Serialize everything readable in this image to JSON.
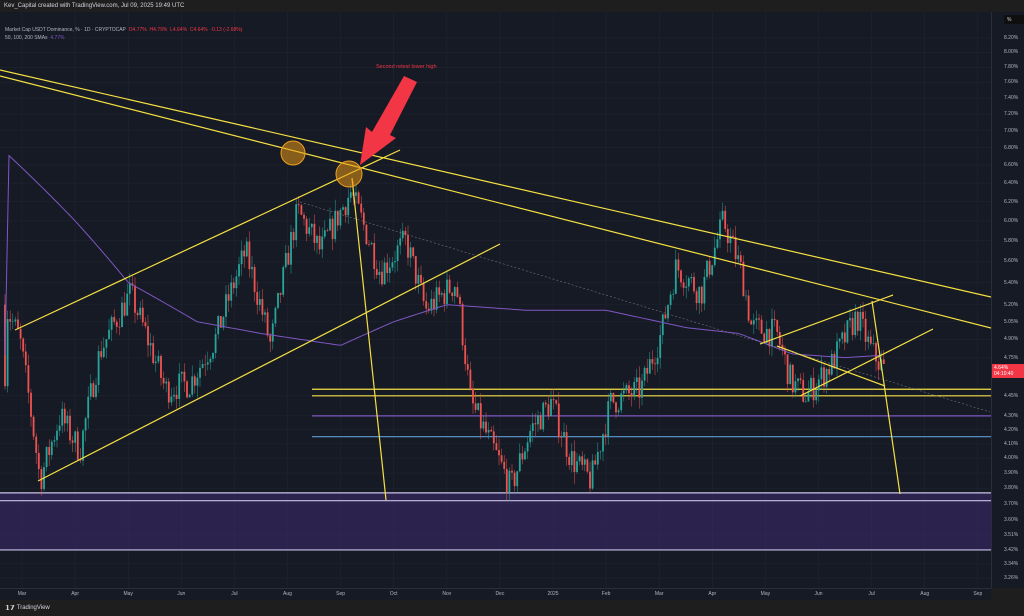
{
  "header": {
    "title": "Kev_Capital created with TradingView.com, Jul 09, 2025 19:49 UTC"
  },
  "legend": {
    "symbol": "Market Cap USDT Dominance, % · 1D · CRYPTOCAP",
    "open": "O4.77%",
    "high": "H4.79%",
    "low": "L4.64%",
    "close": "C4.64%",
    "change": "-0.13 (-2.68%)",
    "sma_label": "50, 100, 200 SMAs",
    "sma_value": "4.77%"
  },
  "annotation": {
    "text": "Second retest lower high"
  },
  "axis": {
    "unit": "%",
    "current_price": "4.64%",
    "countdown": "04:10:40",
    "y_labels": [
      "8.20%",
      "8.00%",
      "7.80%",
      "7.60%",
      "7.40%",
      "7.20%",
      "7.00%",
      "6.80%",
      "6.60%",
      "6.40%",
      "6.20%",
      "6.00%",
      "5.80%",
      "5.60%",
      "5.40%",
      "5.20%",
      "5.05%",
      "4.90%",
      "4.75%",
      "4.45%",
      "4.30%",
      "4.20%",
      "4.10%",
      "4.00%",
      "3.90%",
      "3.80%",
      "3.70%",
      "3.60%",
      "3.51%",
      "3.42%",
      "3.34%",
      "3.26%"
    ],
    "x_labels": [
      "Mar",
      "Apr",
      "May",
      "Jun",
      "Jul",
      "Aug",
      "Sep",
      "Oct",
      "Nov",
      "Dec",
      "2025",
      "Feb",
      "Mar",
      "Apr",
      "May",
      "Jun",
      "Jul",
      "Aug",
      "Sep"
    ]
  },
  "footer": {
    "brand": "TradingView"
  },
  "colors": {
    "up": "#26a69a",
    "down": "#ef5350",
    "sma": "#7e57c2",
    "trend": "#f5e042",
    "bg": "#161a25",
    "zone": "#3b2a6b"
  },
  "chart_data": {
    "type": "candlestick",
    "x_unit": "months since Mar 2024",
    "price_path": [
      [
        -0.32,
        5.2
      ],
      [
        -0.04,
        4.9
      ],
      [
        0.34,
        3.85
      ],
      [
        0.72,
        4.3
      ],
      [
        1.09,
        4.05
      ],
      [
        1.47,
        4.8
      ],
      [
        2.04,
        5.3
      ],
      [
        2.7,
        4.5
      ],
      [
        3.17,
        4.55
      ],
      [
        3.64,
        4.9
      ],
      [
        4.21,
        5.7
      ],
      [
        4.68,
        4.85
      ],
      [
        5.19,
        6.1
      ],
      [
        5.62,
        5.7
      ],
      [
        6.19,
        6.3
      ],
      [
        6.75,
        5.5
      ],
      [
        7.23,
        5.8
      ],
      [
        7.6,
        5.15
      ],
      [
        8.17,
        5.4
      ],
      [
        8.45,
        4.4
      ],
      [
        8.83,
        4.1
      ],
      [
        9.21,
        3.8
      ],
      [
        9.58,
        4.2
      ],
      [
        9.96,
        4.4
      ],
      [
        10.34,
        4.0
      ],
      [
        10.72,
        3.85
      ],
      [
        11.09,
        4.4
      ],
      [
        11.66,
        4.5
      ],
      [
        12.04,
        4.95
      ],
      [
        12.32,
        5.55
      ],
      [
        12.79,
        5.3
      ],
      [
        13.21,
        6.0
      ],
      [
        13.55,
        5.5
      ],
      [
        13.74,
        5.0
      ],
      [
        14.21,
        4.95
      ],
      [
        14.49,
        4.55
      ],
      [
        14.77,
        4.45
      ],
      [
        15.25,
        4.7
      ],
      [
        15.72,
        5.1
      ],
      [
        16.0,
        4.8
      ],
      [
        16.26,
        4.64
      ]
    ],
    "sma200": [
      [
        -0.32,
        6.75
      ],
      [
        1.0,
        6.0
      ],
      [
        2.0,
        5.4
      ],
      [
        3.3,
        5.05
      ],
      [
        4.5,
        4.95
      ],
      [
        6.0,
        4.85
      ],
      [
        7.0,
        5.05
      ],
      [
        8.0,
        5.2
      ],
      [
        9.5,
        5.15
      ],
      [
        11.0,
        5.15
      ],
      [
        12.5,
        5.0
      ],
      [
        13.5,
        4.95
      ],
      [
        14.5,
        4.78
      ],
      [
        15.5,
        4.75
      ],
      [
        16.26,
        4.77
      ]
    ],
    "horizontal_levels": [
      {
        "value": 4.5,
        "color": "#f5e042"
      },
      {
        "value": 4.45,
        "color": "#f5e042"
      },
      {
        "value": 4.3,
        "color": "#7e57c2"
      },
      {
        "value": 4.15,
        "color": "#5b9bd5"
      },
      {
        "value": 3.77,
        "color": "#c9c3e6"
      },
      {
        "value": 3.72,
        "color": "#c9c3e6"
      },
      {
        "value": 3.42,
        "color": "#c9c3e6"
      }
    ],
    "ylim": [
      3.26,
      8.2
    ]
  }
}
